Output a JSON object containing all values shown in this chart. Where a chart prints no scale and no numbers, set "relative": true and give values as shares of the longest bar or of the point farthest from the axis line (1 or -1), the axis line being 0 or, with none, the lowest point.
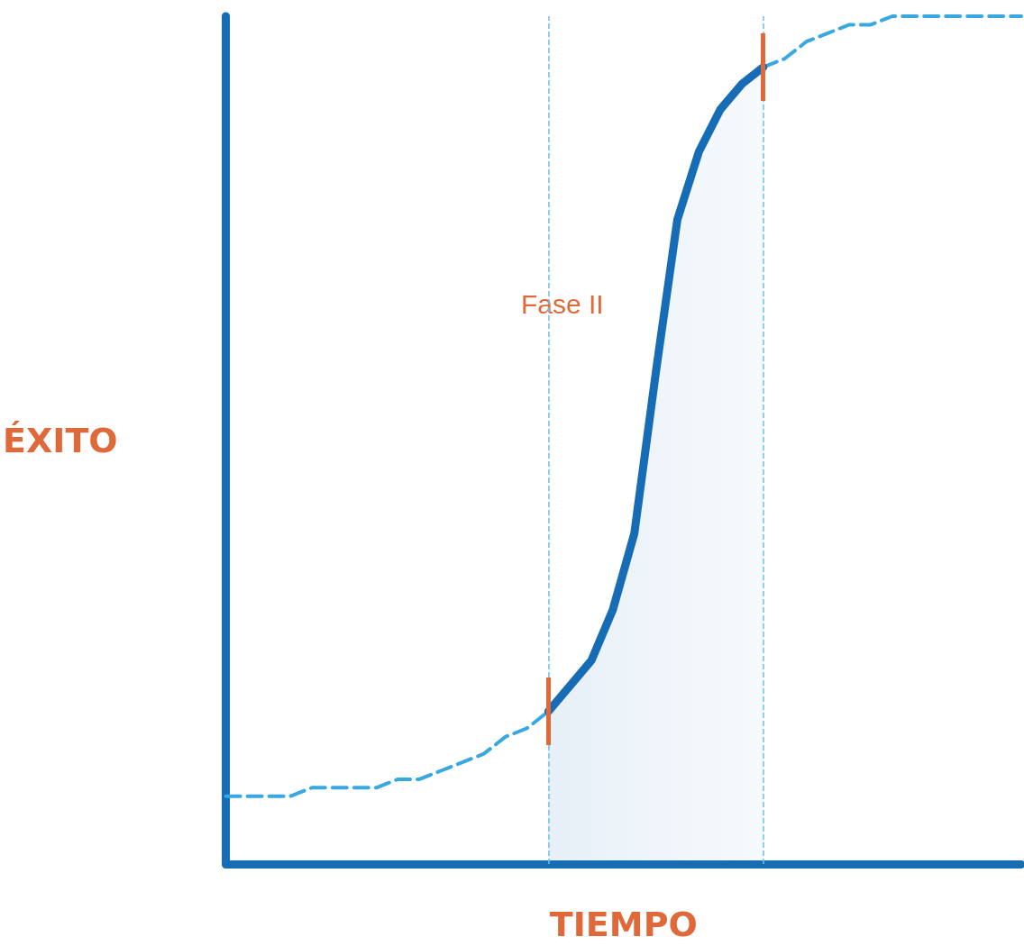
{
  "chart_data": {
    "type": "line",
    "relative": true,
    "xlabel": "TIEMPO",
    "ylabel": "ÉXITO",
    "annotations": [
      "Fase II"
    ],
    "grid": false,
    "marker": "none",
    "categories": [
      null,
      null,
      null,
      null,
      null,
      null,
      null,
      null,
      null,
      null,
      null,
      null,
      null,
      null,
      null,
      null,
      null,
      null,
      null,
      null,
      null,
      null,
      null,
      null,
      null,
      null,
      null,
      null,
      null,
      null,
      null,
      null,
      null,
      null,
      null,
      null,
      null,
      null
    ],
    "series": [
      {
        "color": "#3aa8e0",
        "line_style": "dashed",
        "values": [
          0.08,
          0.08,
          0.08,
          0.08,
          0.09,
          0.09,
          0.09,
          0.09,
          0.1,
          0.1,
          0.11,
          0.12,
          0.13,
          0.15,
          0.16,
          0.18,
          null,
          null,
          null,
          null,
          null,
          null,
          null,
          null,
          null,
          null,
          null,
          null,
          null,
          null,
          null,
          null,
          null,
          null,
          null,
          null,
          null,
          null
        ]
      },
      {
        "type": "area",
        "color": "#166db5",
        "line_style": "solid",
        "values": [
          null,
          null,
          null,
          null,
          null,
          null,
          null,
          null,
          null,
          null,
          null,
          null,
          null,
          null,
          null,
          0.18,
          0.21,
          0.24,
          0.3,
          0.39,
          0.58,
          0.76,
          0.84,
          0.89,
          0.92,
          0.94,
          null,
          null,
          null,
          null,
          null,
          null,
          null,
          null,
          null,
          null,
          null,
          null
        ]
      },
      {
        "color": "#3aa8e0",
        "line_style": "dashed",
        "values": [
          null,
          null,
          null,
          null,
          null,
          null,
          null,
          null,
          null,
          null,
          null,
          null,
          null,
          null,
          null,
          null,
          null,
          null,
          null,
          null,
          null,
          null,
          null,
          null,
          null,
          0.94,
          0.95,
          0.97,
          0.98,
          0.99,
          0.99,
          1,
          1,
          1,
          1,
          1,
          1,
          1
        ]
      }
    ]
  }
}
